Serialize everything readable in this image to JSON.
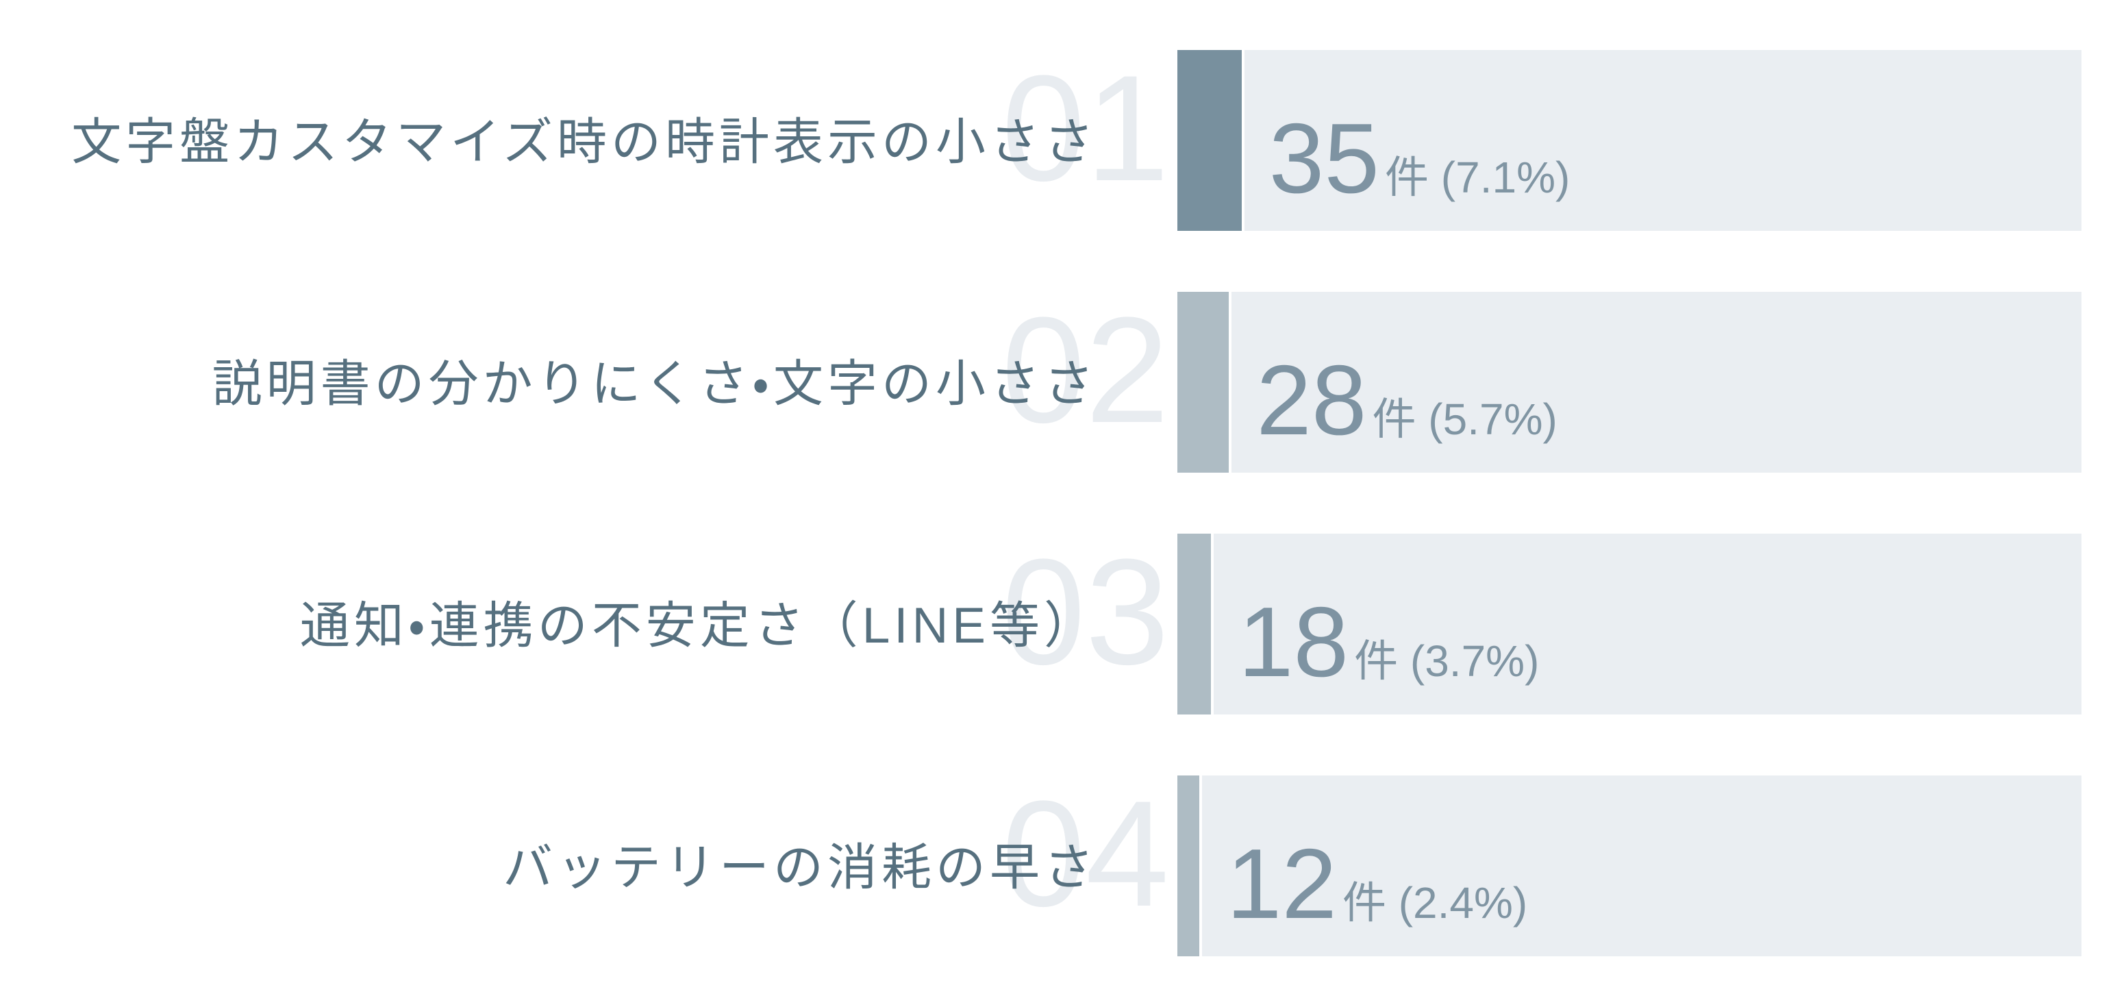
{
  "chart_data": {
    "type": "bar",
    "orientation": "horizontal",
    "title": "",
    "value_unit": "件",
    "categories": [
      "文字盤カスタマイズ時の時計表示の小ささ",
      "説明書の分かりにくさ・文字の小ささ",
      "通知・連携の不安定さ（LINE等）",
      "バッテリーの消耗の早さ"
    ],
    "values": [
      35,
      28,
      18,
      12
    ],
    "percentages": [
      7.1,
      5.7,
      3.7,
      2.4
    ],
    "rank_badges": [
      "01",
      "02",
      "03",
      "04"
    ],
    "value_texts": [
      "件 (7.1%)",
      "件 (5.7%)",
      "件 (3.7%)",
      "件 (2.4%)"
    ],
    "xlim_pct": [
      0,
      100
    ],
    "grid": false,
    "legend": false
  },
  "colors": {
    "background": "#ffffff",
    "track": "#eaeef2",
    "accent_top": "#78909e",
    "accent": "#aebcc4",
    "label_text": "#56707f",
    "value_text": "#7e93a2",
    "value_unit_text": "#8095a3",
    "ghost": "#e8ecf0"
  }
}
